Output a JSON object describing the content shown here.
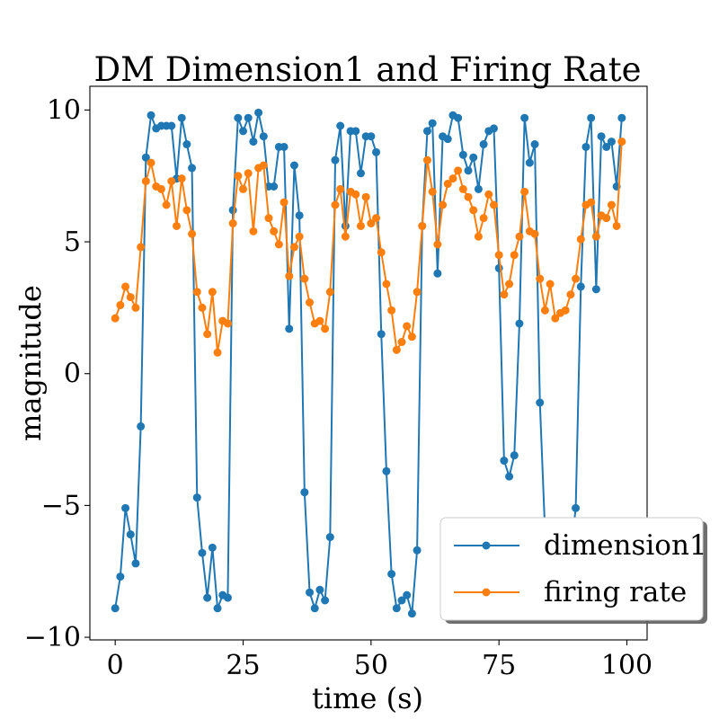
{
  "chart_data": {
    "type": "line",
    "title": "DM Dimension1 and Firing Rate",
    "xlabel": "time (s)",
    "ylabel": "magnitude",
    "xlim": [
      -4.95,
      103.95
    ],
    "ylim": [
      -10.1,
      10.9
    ],
    "xticks": [
      0,
      25,
      50,
      75,
      100
    ],
    "yticks": [
      -10,
      -5,
      0,
      5,
      10
    ],
    "xtick_labels": [
      "0",
      "25",
      "50",
      "75",
      "100"
    ],
    "ytick_labels": [
      "−10",
      "−5",
      "0",
      "5",
      "10"
    ],
    "grid": false,
    "legend_position": "lower right",
    "series": [
      {
        "name": "dimension1",
        "color": "#1f77b4",
        "marker": "circle",
        "x": [
          0,
          1,
          2,
          3,
          4,
          5,
          6,
          7,
          8,
          9,
          10,
          11,
          12,
          13,
          14,
          15,
          16,
          17,
          18,
          19,
          20,
          21,
          22,
          23,
          24,
          25,
          26,
          27,
          28,
          29,
          30,
          31,
          32,
          33,
          34,
          35,
          36,
          37,
          38,
          39,
          40,
          41,
          42,
          43,
          44,
          45,
          46,
          47,
          48,
          49,
          50,
          51,
          52,
          53,
          54,
          55,
          56,
          57,
          58,
          59,
          60,
          61,
          62,
          63,
          64,
          65,
          66,
          67,
          68,
          69,
          70,
          71,
          72,
          73,
          74,
          75,
          76,
          77,
          78,
          79,
          80,
          81,
          82,
          83,
          84,
          85,
          86,
          87,
          88,
          89,
          90,
          91,
          92,
          93,
          94,
          95,
          96,
          97,
          98,
          99
        ],
        "values": [
          -8.9,
          -7.7,
          -5.1,
          -6.1,
          -7.2,
          -2.0,
          8.2,
          9.8,
          9.3,
          9.4,
          9.4,
          9.4,
          7.4,
          9.7,
          8.7,
          7.8,
          -4.7,
          -6.8,
          -8.5,
          -6.6,
          -8.9,
          -8.4,
          -8.5,
          6.2,
          9.7,
          9.2,
          9.7,
          8.8,
          9.9,
          9.0,
          7.1,
          7.1,
          8.6,
          8.6,
          1.7,
          7.9,
          6.0,
          -4.5,
          -8.3,
          -8.9,
          -8.2,
          -8.6,
          -6.2,
          8.1,
          9.4,
          5.6,
          9.2,
          9.2,
          7.6,
          9.0,
          9.0,
          8.4,
          1.5,
          -3.7,
          -7.6,
          -8.9,
          -8.6,
          -8.4,
          -9.1,
          -6.7,
          5.6,
          9.2,
          9.5,
          3.8,
          9.0,
          8.9,
          9.8,
          9.7,
          8.3,
          7.7,
          8.2,
          7.0,
          8.7,
          9.2,
          9.3,
          4.0,
          -3.3,
          -3.9,
          -3.1,
          1.9,
          9.7,
          8.0,
          8.7,
          -1.1,
          -6.0,
          -7.0,
          -7.0,
          -7.0,
          -7.0,
          -6.9,
          -5.1,
          3.3,
          8.6,
          9.7,
          3.2,
          9.0,
          8.6,
          8.8,
          7.1,
          9.7
        ]
      },
      {
        "name": "firing rate",
        "color": "#ff7f0e",
        "marker": "circle",
        "x": [
          0,
          1,
          2,
          3,
          4,
          5,
          6,
          7,
          8,
          9,
          10,
          11,
          12,
          13,
          14,
          15,
          16,
          17,
          18,
          19,
          20,
          21,
          22,
          23,
          24,
          25,
          26,
          27,
          28,
          29,
          30,
          31,
          32,
          33,
          34,
          35,
          36,
          37,
          38,
          39,
          40,
          41,
          42,
          43,
          44,
          45,
          46,
          47,
          48,
          49,
          50,
          51,
          52,
          53,
          54,
          55,
          56,
          57,
          58,
          59,
          60,
          61,
          62,
          63,
          64,
          65,
          66,
          67,
          68,
          69,
          70,
          71,
          72,
          73,
          74,
          75,
          76,
          77,
          78,
          79,
          80,
          81,
          82,
          83,
          84,
          85,
          86,
          87,
          88,
          89,
          90,
          91,
          92,
          93,
          94,
          95,
          96,
          97,
          98,
          99
        ],
        "values": [
          2.1,
          2.6,
          3.3,
          2.9,
          2.5,
          4.8,
          7.3,
          8.0,
          7.1,
          7.0,
          6.4,
          7.3,
          5.6,
          7.4,
          6.2,
          5.3,
          3.1,
          2.5,
          1.5,
          3.1,
          0.8,
          2.0,
          1.9,
          5.7,
          7.5,
          7.0,
          7.6,
          5.4,
          7.8,
          7.9,
          5.9,
          5.4,
          4.9,
          6.5,
          3.7,
          4.8,
          5.2,
          3.6,
          2.7,
          1.9,
          2.0,
          1.7,
          3.1,
          6.4,
          7.0,
          5.2,
          6.9,
          6.8,
          5.6,
          6.7,
          5.7,
          5.9,
          4.6,
          3.4,
          2.4,
          0.9,
          1.2,
          1.8,
          1.4,
          3.1,
          5.6,
          8.1,
          6.9,
          4.9,
          6.4,
          7.2,
          7.4,
          7.7,
          7.0,
          6.7,
          6.2,
          5.2,
          5.9,
          6.8,
          6.4,
          4.5,
          3.0,
          3.4,
          4.5,
          5.2,
          6.9,
          5.4,
          5.3,
          3.6,
          2.4,
          3.4,
          2.1,
          2.3,
          2.4,
          3.0,
          3.6,
          5.1,
          6.4,
          6.5,
          5.2,
          6.0,
          5.9,
          6.4,
          5.6,
          8.8
        ]
      }
    ]
  }
}
